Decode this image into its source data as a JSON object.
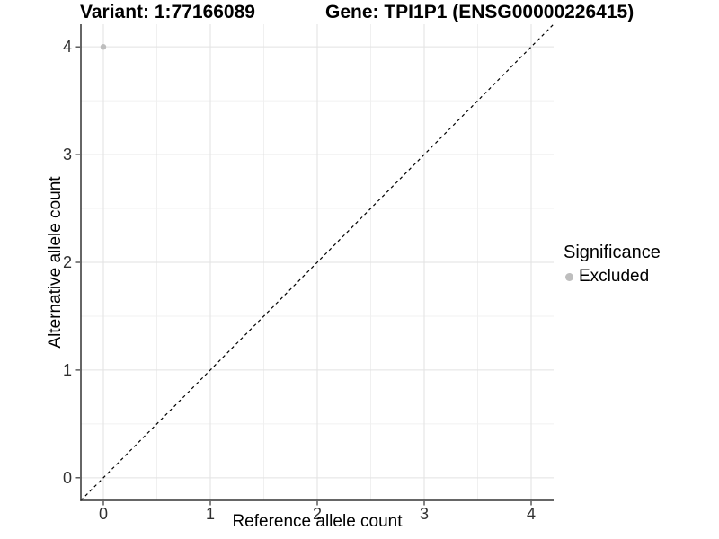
{
  "header": {
    "title_left": "Variant: 1:77166089",
    "title_right": "Gene: TPI1P1 (ENSG00000226415)"
  },
  "chart_data": {
    "type": "scatter",
    "title_left": "Variant: 1:77166089",
    "title_right": "Gene: TPI1P1 (ENSG00000226415)",
    "xlabel": "Reference allele count",
    "ylabel": "Alternative allele count",
    "xlim": [
      -0.21,
      4.21
    ],
    "ylim": [
      -0.21,
      4.21
    ],
    "x_ticks": [
      0,
      1,
      2,
      3,
      4
    ],
    "y_ticks": [
      0,
      1,
      2,
      3,
      4
    ],
    "x_minor_ticks": [
      0.5,
      1.5,
      2.5,
      3.5
    ],
    "y_minor_ticks": [
      0.5,
      1.5,
      2.5,
      3.5
    ],
    "grid": "major-and-minor",
    "points": [
      {
        "x": 0,
        "y": 4,
        "significance": "Excluded"
      }
    ],
    "identity_line": {
      "slope": 1,
      "intercept": 0,
      "style": "dashed"
    },
    "legend": {
      "title": "Significance",
      "position": "right",
      "entries": [
        {
          "label": "Excluded",
          "color": "#BEBEBE",
          "marker": "circle"
        }
      ]
    }
  },
  "colors": {
    "background": "#FFFFFF",
    "point": "#BEBEBE",
    "grid_major": "#E2E2E2",
    "grid_minor": "#F0F0F0",
    "axis_line": "#333333",
    "tick_mark": "#333333",
    "tick_text": "#303030",
    "dashed_line": "#000000",
    "title_text": "#000000"
  }
}
